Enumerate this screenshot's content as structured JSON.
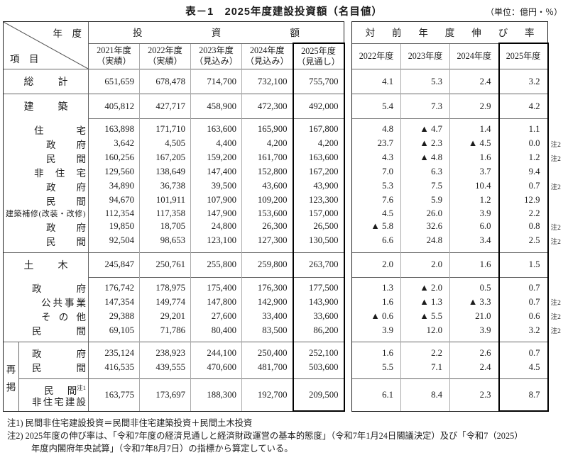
{
  "title": "表－1　2025年度建設投資額（名目値）",
  "unit_note": "（単位：億円・％）",
  "header": {
    "corner_top": "年　度",
    "corner_bottom": "項　目",
    "invest_group": "投資額",
    "rate_group": "対前年度伸び率",
    "invest_cols": [
      {
        "year": "2021年度",
        "sub": "（実績）"
      },
      {
        "year": "2022年度",
        "sub": "（実績）"
      },
      {
        "year": "2023年度",
        "sub": "（見込み）"
      },
      {
        "year": "2024年度",
        "sub": "（見込み）"
      },
      {
        "year": "2025年度",
        "sub": "（見通し）"
      }
    ],
    "rate_cols": [
      "2022年度",
      "2023年度",
      "2024年度",
      "2025年度"
    ]
  },
  "rows": [
    {
      "label": "総計",
      "lcls": "l1",
      "tall": true,
      "sep": "full",
      "values": [
        "651,659",
        "678,478",
        "714,700",
        "732,100",
        "755,700"
      ],
      "rates": [
        "4.1",
        "5.3",
        "2.4",
        "3.2"
      ],
      "note": ""
    },
    {
      "label": "建築",
      "lcls": "l1",
      "tall": true,
      "sep": "full",
      "values": [
        "405,812",
        "427,717",
        "458,900",
        "472,300",
        "492,000"
      ],
      "rates": [
        "5.4",
        "7.3",
        "2.9",
        "4.2"
      ],
      "note": ""
    },
    {
      "label": "住宅",
      "lcls": "l2",
      "padT": true,
      "sep": "data",
      "values": [
        "163,898",
        "171,710",
        "163,600",
        "165,900",
        "167,800"
      ],
      "rates": [
        "4.8",
        "▲ 4.7",
        "1.4",
        "1.1"
      ],
      "note": ""
    },
    {
      "label": "政府",
      "lcls": "l3",
      "values": [
        "3,642",
        "4,505",
        "4,400",
        "4,200",
        "4,200"
      ],
      "rates": [
        "23.7",
        "▲ 2.3",
        "▲ 4.5",
        "0.0"
      ],
      "note": "注2"
    },
    {
      "label": "民間",
      "lcls": "l3",
      "values": [
        "160,256",
        "167,205",
        "159,200",
        "161,700",
        "163,600"
      ],
      "rates": [
        "4.3",
        "▲ 4.8",
        "1.6",
        "1.2"
      ],
      "note": "注2"
    },
    {
      "label": "非住宅",
      "lcls": "l2",
      "values": [
        "129,560",
        "138,649",
        "147,400",
        "152,800",
        "167,200"
      ],
      "rates": [
        "7.0",
        "6.3",
        "3.7",
        "9.4"
      ],
      "note": ""
    },
    {
      "label": "政府",
      "lcls": "l3",
      "values": [
        "34,890",
        "36,738",
        "39,500",
        "43,600",
        "43,900"
      ],
      "rates": [
        "5.3",
        "7.5",
        "10.4",
        "0.7"
      ],
      "note": "注2"
    },
    {
      "label": "民間",
      "lcls": "l3",
      "values": [
        "94,670",
        "101,911",
        "107,900",
        "109,200",
        "123,300"
      ],
      "rates": [
        "7.6",
        "5.9",
        "1.2",
        "12.9"
      ],
      "note": ""
    },
    {
      "label": "建築補修(改装・改修)",
      "lcls": "lfull",
      "values": [
        "112,354",
        "117,358",
        "147,900",
        "153,600",
        "157,000"
      ],
      "rates": [
        "4.5",
        "26.0",
        "3.9",
        "2.2"
      ],
      "note": ""
    },
    {
      "label": "政府",
      "lcls": "l3",
      "values": [
        "19,850",
        "18,705",
        "24,800",
        "26,300",
        "26,500"
      ],
      "rates": [
        "▲ 5.8",
        "32.6",
        "6.0",
        "0.8"
      ],
      "note": "注2"
    },
    {
      "label": "民間",
      "lcls": "l3",
      "padB": true,
      "values": [
        "92,504",
        "98,653",
        "123,100",
        "127,300",
        "130,500"
      ],
      "rates": [
        "6.6",
        "24.8",
        "3.4",
        "2.5"
      ],
      "note": "注2"
    },
    {
      "label": "土木",
      "lcls": "l1",
      "tall": true,
      "sep": "full",
      "values": [
        "245,847",
        "250,761",
        "255,800",
        "259,800",
        "263,700"
      ],
      "rates": [
        "2.0",
        "2.0",
        "1.6",
        "1.5"
      ],
      "note": ""
    },
    {
      "label": "政府",
      "lcls": "l4",
      "padT": true,
      "sep": "data",
      "values": [
        "176,742",
        "178,975",
        "175,400",
        "176,300",
        "177,500"
      ],
      "rates": [
        "1.3",
        "▲ 2.0",
        "0.5",
        "0.7"
      ],
      "note": ""
    },
    {
      "label": "公共事業",
      "lcls": "l5",
      "values": [
        "147,354",
        "149,774",
        "147,800",
        "142,900",
        "143,900"
      ],
      "rates": [
        "1.6",
        "▲ 1.3",
        "▲ 3.3",
        "0.7"
      ],
      "note": "注2"
    },
    {
      "label": "その他",
      "lcls": "l5",
      "values": [
        "29,388",
        "29,201",
        "27,600",
        "33,400",
        "33,600"
      ],
      "rates": [
        "▲ 0.6",
        "▲ 5.5",
        "21.0",
        "0.6"
      ],
      "note": "注2"
    },
    {
      "label": "民間",
      "lcls": "l4",
      "padB": true,
      "values": [
        "69,105",
        "71,786",
        "80,400",
        "83,500",
        "86,200"
      ],
      "rates": [
        "3.9",
        "12.0",
        "3.9",
        "3.2"
      ],
      "note": "注2"
    }
  ],
  "saikei": {
    "label": "再掲",
    "rows": [
      {
        "label": "政府",
        "values": [
          "235,124",
          "238,923",
          "244,100",
          "250,400",
          "252,100"
        ],
        "rates": [
          "1.6",
          "2.2",
          "2.6",
          "0.7"
        ],
        "note": ""
      },
      {
        "label": "民間",
        "values": [
          "416,535",
          "439,555",
          "470,600",
          "481,700",
          "503,600"
        ],
        "rates": [
          "5.5",
          "7.1",
          "2.4",
          "4.5"
        ],
        "note": ""
      },
      {
        "label_line1": "民間",
        "label_sup": "注1",
        "label_line2": "非住宅建設",
        "values": [
          "163,775",
          "173,697",
          "188,300",
          "192,700",
          "209,500"
        ],
        "rates": [
          "6.1",
          "8.4",
          "2.3",
          "8.7"
        ],
        "note": ""
      }
    ]
  },
  "footnotes": [
    "注1) 民間非住宅建設投資＝民間非住宅建築投資＋民間土木投資",
    "注2) 2025年度の伸び率は、「令和7年度の経済見通しと経済財政運営の基本的態度」（令和7年1月24日閣議決定）及び「令和7（2025）",
    "年度内閣府年央試算」（令和7年8月7日）の指標から算定している。"
  ]
}
